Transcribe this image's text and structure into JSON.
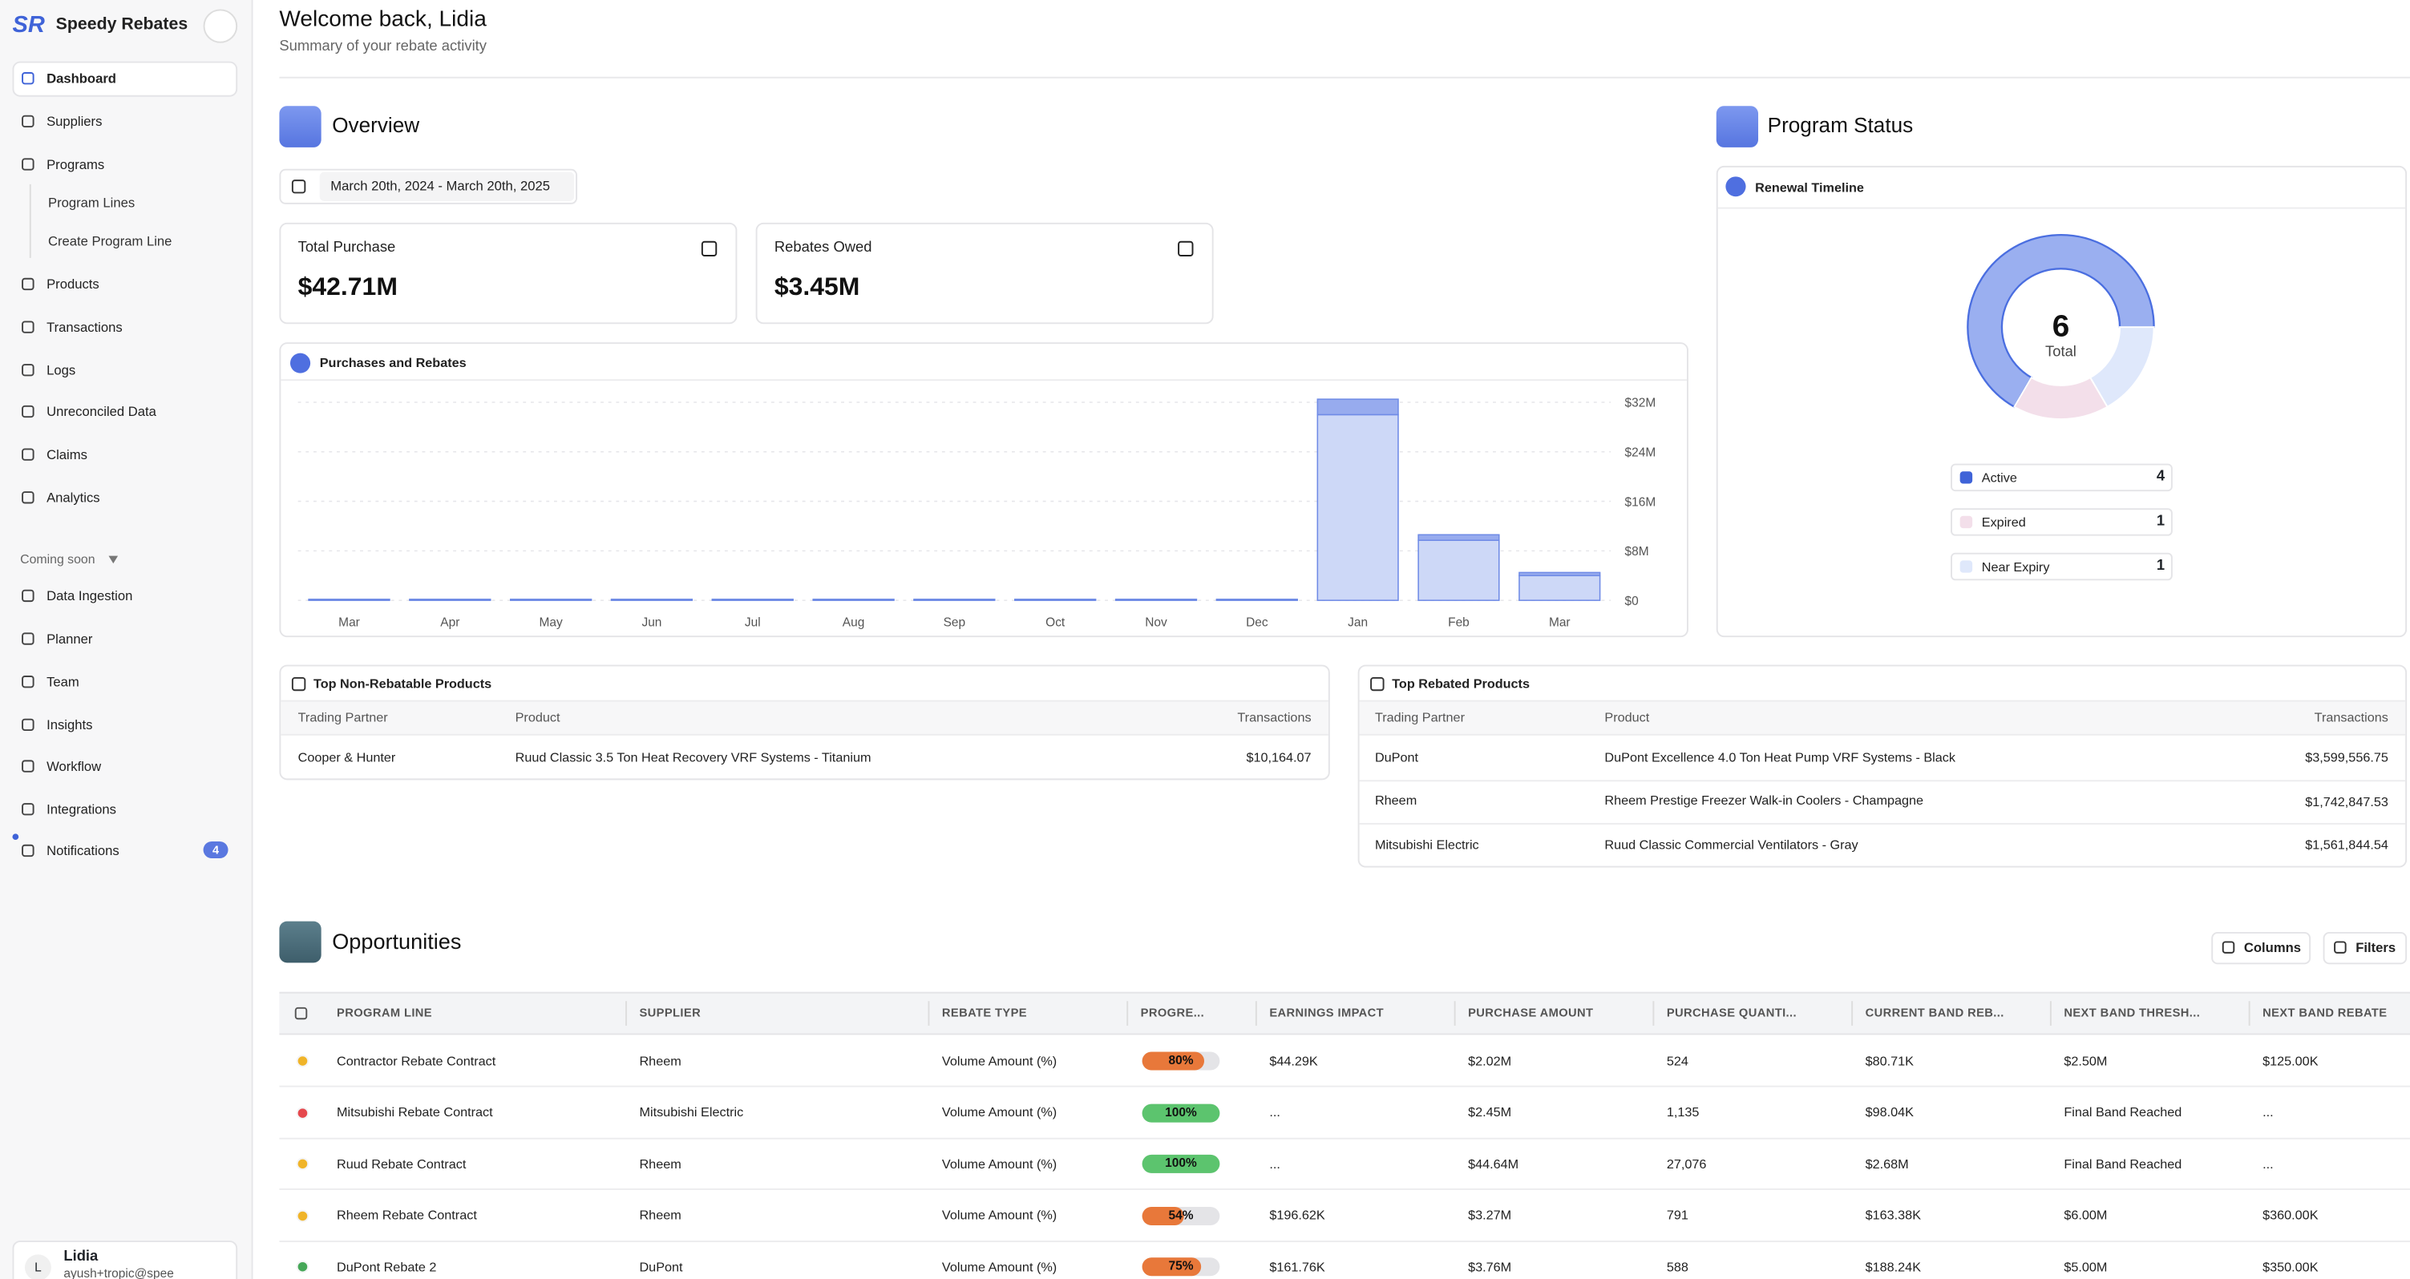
{
  "sidebar": {
    "logo": "SR",
    "brand": "Speedy Rebates",
    "nav": [
      "Dashboard",
      "Suppliers",
      "Programs",
      "Products",
      "Transactions",
      "Logs",
      "Unreconciled Data",
      "Claims",
      "Analytics"
    ],
    "subnav": [
      "Program Lines",
      "Create Program Line"
    ],
    "coming_soon_label": "Coming soon",
    "coming_soon": [
      "Data Ingestion",
      "Planner",
      "Team",
      "Insights",
      "Workflow",
      "Integrations",
      "Notifications"
    ],
    "notifications_count": 4,
    "user": {
      "initial": "L",
      "name": "Lidia",
      "email": "ayush+tropic@spee"
    }
  },
  "header": {
    "title": "Welcome back, Lidia",
    "subtitle": "Summary of your rebate activity"
  },
  "overview": {
    "title": "Overview",
    "date_range": "March 20th, 2024 - March 20th, 2025",
    "cards": [
      {
        "label": "Total Purchase",
        "value": "$42.71M"
      },
      {
        "label": "Rebates Owed",
        "value": "$3.45M"
      }
    ]
  },
  "program_status": {
    "title": "Program Status"
  },
  "chart_data": [
    {
      "type": "bar",
      "title": "Purchases and Rebates",
      "stacked": true,
      "grid": true,
      "categories": [
        "Mar",
        "Apr",
        "May",
        "Jun",
        "Jul",
        "Aug",
        "Sep",
        "Oct",
        "Nov",
        "Dec",
        "Jan",
        "Feb",
        "Mar"
      ],
      "series": [
        {
          "color": "#cdd8f7",
          "values": [
            150000,
            150000,
            150000,
            150000,
            150000,
            150000,
            150000,
            150000,
            150000,
            150000,
            30000000,
            9700000,
            4000000
          ]
        },
        {
          "color": "#97abee",
          "values": [
            20000,
            20000,
            20000,
            20000,
            20000,
            20000,
            20000,
            20000,
            20000,
            20000,
            2500000,
            900000,
            500000
          ]
        }
      ],
      "ylim": [
        0,
        32000000
      ],
      "yticks": [
        {
          "value": 0,
          "label": "$0"
        },
        {
          "value": 8000000,
          "label": "$8M"
        },
        {
          "value": 16000000,
          "label": "$16M"
        },
        {
          "value": 24000000,
          "label": "$24M"
        },
        {
          "value": 32000000,
          "label": "$32M"
        }
      ]
    },
    {
      "type": "pie",
      "title": "Renewal Timeline",
      "categories": [
        "Active",
        "Expired",
        "Near Expiry"
      ],
      "values": [
        4,
        1,
        1
      ],
      "colors": [
        "#9aaff0",
        "#f3dfea",
        "#dfe8fb"
      ],
      "total": 6,
      "total_label": "Total"
    }
  ],
  "tables": [
    {
      "title": "Top Non-Rebatable Products",
      "columns": [
        "Trading Partner",
        "Product",
        "Transactions"
      ],
      "rows": [
        [
          "Cooper & Hunter",
          "Ruud Classic 3.5 Ton Heat Recovery VRF Systems - Titanium",
          "$10,164.07"
        ]
      ]
    },
    {
      "title": "Top Rebated Products",
      "columns": [
        "Trading Partner",
        "Product",
        "Transactions"
      ],
      "rows": [
        [
          "DuPont",
          "DuPont Excellence 4.0 Ton Heat Pump VRF Systems - Black",
          "$3,599,556.75"
        ],
        [
          "Rheem",
          "Rheem Prestige Freezer Walk-in Coolers - Champagne",
          "$1,742,847.53"
        ],
        [
          "Mitsubishi Electric",
          "Ruud Classic Commercial Ventilators - Gray",
          "$1,561,844.54"
        ]
      ]
    }
  ],
  "opportunities": {
    "title": "Opportunities",
    "buttons": [
      "Columns",
      "Filters"
    ],
    "columns": [
      "PROGRAM LINE",
      "SUPPLIER",
      "REBATE TYPE",
      "PROGRE...",
      "EARNINGS IMPACT",
      "PURCHASE AMOUNT",
      "PURCHASE QUANTI...",
      "CURRENT BAND REB...",
      "NEXT BAND THRESH...",
      "NEXT BAND REBATE"
    ],
    "rows": [
      {
        "status": "#f0b429",
        "progress": 80,
        "progress_label": "80%",
        "progress_color": "#e8783a",
        "cells": [
          "Contractor Rebate Contract",
          "Rheem",
          "Volume Amount (%)",
          "$44.29K",
          "$2.02M",
          "524",
          "$80.71K",
          "$2.50M",
          "$125.00K"
        ]
      },
      {
        "status": "#e5484d",
        "progress": 100,
        "progress_label": "100%",
        "progress_color": "#5cc46e",
        "cells": [
          "Mitsubishi Rebate Contract",
          "Mitsubishi Electric",
          "Volume Amount (%)",
          "...",
          "$2.45M",
          "1,135",
          "$98.04K",
          "Final Band Reached",
          "..."
        ]
      },
      {
        "status": "#f0b429",
        "progress": 100,
        "progress_label": "100%",
        "progress_color": "#5cc46e",
        "cells": [
          "Ruud Rebate Contract",
          "Rheem",
          "Volume Amount (%)",
          "...",
          "$44.64M",
          "27,076",
          "$2.68M",
          "Final Band Reached",
          "..."
        ]
      },
      {
        "status": "#f0b429",
        "progress": 54,
        "progress_label": "54%",
        "progress_color": "#e8783a",
        "cells": [
          "Rheem Rebate Contract",
          "Rheem",
          "Volume Amount (%)",
          "$196.62K",
          "$3.27M",
          "791",
          "$163.38K",
          "$6.00M",
          "$360.00K"
        ]
      },
      {
        "status": "#46a758",
        "progress": 75,
        "progress_label": "75%",
        "progress_color": "#e8783a",
        "cells": [
          "DuPont Rebate 2",
          "DuPont",
          "Volume Amount (%)",
          "$161.76K",
          "$3.76M",
          "588",
          "$188.24K",
          "$5.00M",
          "$350.00K"
        ]
      }
    ]
  }
}
